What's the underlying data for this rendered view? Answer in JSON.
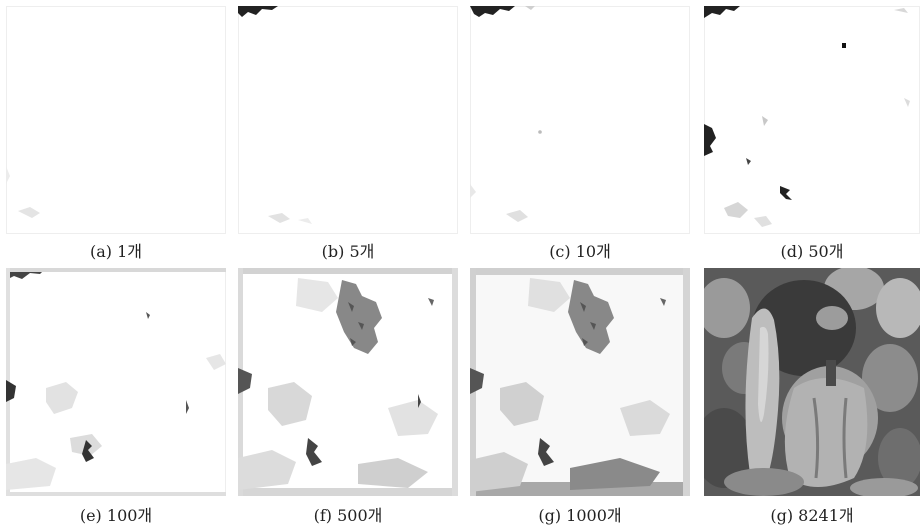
{
  "figure": {
    "panels": [
      {
        "id": "a",
        "caption": "(a) 1개"
      },
      {
        "id": "b",
        "caption": "(b) 5개"
      },
      {
        "id": "c",
        "caption": "(c) 10개"
      },
      {
        "id": "d",
        "caption": "(d) 50개"
      },
      {
        "id": "e",
        "caption": "(e) 100개"
      },
      {
        "id": "f",
        "caption": "(f) 500개"
      },
      {
        "id": "g1",
        "caption": "(g) 1000개"
      },
      {
        "id": "g2",
        "caption": "(g) 8241개"
      }
    ]
  }
}
